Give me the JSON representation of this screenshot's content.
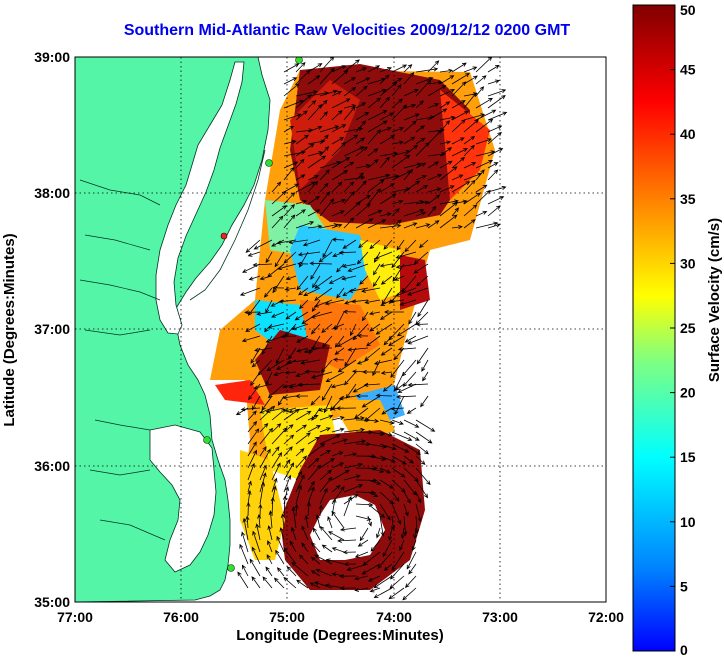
{
  "title": "Southern Mid-Atlantic Raw Velocities 2009/12/12 0200 GMT",
  "xaxis": {
    "label": "Longitude (Degrees:Minutes)",
    "ticks": [
      "77:00",
      "76:00",
      "75:00",
      "74:00",
      "73:00",
      "72:00"
    ],
    "range": [
      -77,
      -72
    ]
  },
  "yaxis": {
    "label": "Latitude (Degrees:Minutes)",
    "ticks": [
      "35:00",
      "36:00",
      "37:00",
      "38:00",
      "39:00"
    ],
    "range": [
      35,
      39
    ]
  },
  "colorbar": {
    "label": "Surface Velocity (cm/s)",
    "ticks": [
      "0",
      "5",
      "10",
      "15",
      "20",
      "25",
      "30",
      "35",
      "40",
      "45",
      "50"
    ],
    "range": [
      0,
      50
    ]
  },
  "colors": {
    "land": "#55f5a8",
    "water": "#ffffff",
    "title": "#0000ee",
    "station": "#33dd33"
  },
  "grid": "dotted"
}
